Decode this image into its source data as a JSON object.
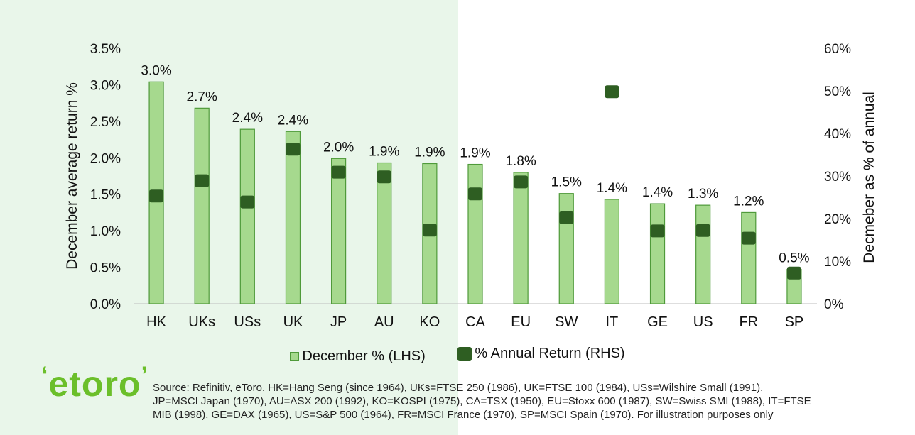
{
  "chart_data": {
    "type": "bar",
    "categories": [
      "HK",
      "UKs",
      "USs",
      "UK",
      "JP",
      "AU",
      "KO",
      "CA",
      "EU",
      "SW",
      "IT",
      "GE",
      "US",
      "FR",
      "SP"
    ],
    "series": [
      {
        "name": "December % (LHS)",
        "axis": "left",
        "render": "bar",
        "values": [
          3.04,
          2.68,
          2.39,
          2.36,
          1.99,
          1.93,
          1.92,
          1.91,
          1.8,
          1.51,
          1.43,
          1.37,
          1.35,
          1.25,
          0.47
        ],
        "labels": [
          "3.0%",
          "2.7%",
          "2.4%",
          "2.4%",
          "2.0%",
          "1.9%",
          "1.9%",
          "1.9%",
          "1.8%",
          "1.5%",
          "1.4%",
          "1.4%",
          "1.3%",
          "1.2%",
          "0.5%"
        ]
      },
      {
        "name": "% Annual Return (RHS)",
        "axis": "right",
        "render": "marker",
        "values": [
          25.3,
          28.9,
          23.9,
          36.3,
          30.9,
          29.8,
          17.3,
          25.8,
          28.6,
          20.2,
          49.8,
          17.1,
          17.2,
          15.4,
          7.2
        ]
      }
    ],
    "ylabel": "December average return %",
    "y2label": "Decmeber as % of annual",
    "ylim": [
      0,
      3.5
    ],
    "y2lim": [
      0,
      60
    ],
    "yticks": [
      "0.0%",
      "0.5%",
      "1.0%",
      "1.5%",
      "2.0%",
      "2.5%",
      "3.0%",
      "3.5%"
    ],
    "y2ticks": [
      "0%",
      "10%",
      "20%",
      "30%",
      "40%",
      "50%",
      "60%"
    ],
    "legend_position": "bottom",
    "colors": {
      "bar_fill": "#a6d98e",
      "bar_stroke": "#4f9a3a",
      "marker": "#2e5e22"
    }
  },
  "legend": {
    "bar_label": "December % (LHS)",
    "marker_label": "% Annual Return (RHS)"
  },
  "logo": {
    "text": "etoro"
  },
  "source": {
    "line1": "Source: Refinitiv, eToro. HK=Hang Seng (since 1964), UKs=FTSE 250 (1986), UK=FTSE 100 (1984), USs=Wilshire Small (1991),",
    "line2": "JP=MSCI Japan (1970), AU=ASX 200 (1992), KO=KOSPI (1975), CA=TSX (1950), EU=Stoxx 600 (1987), SW=Swiss SMI (1988), IT=FTSE",
    "line3": "MIB (1998), GE=DAX (1965), US=S&P 500 (1964), FR=MSCI France (1970), SP=MSCI Spain (1970). For illustration purposes only"
  }
}
